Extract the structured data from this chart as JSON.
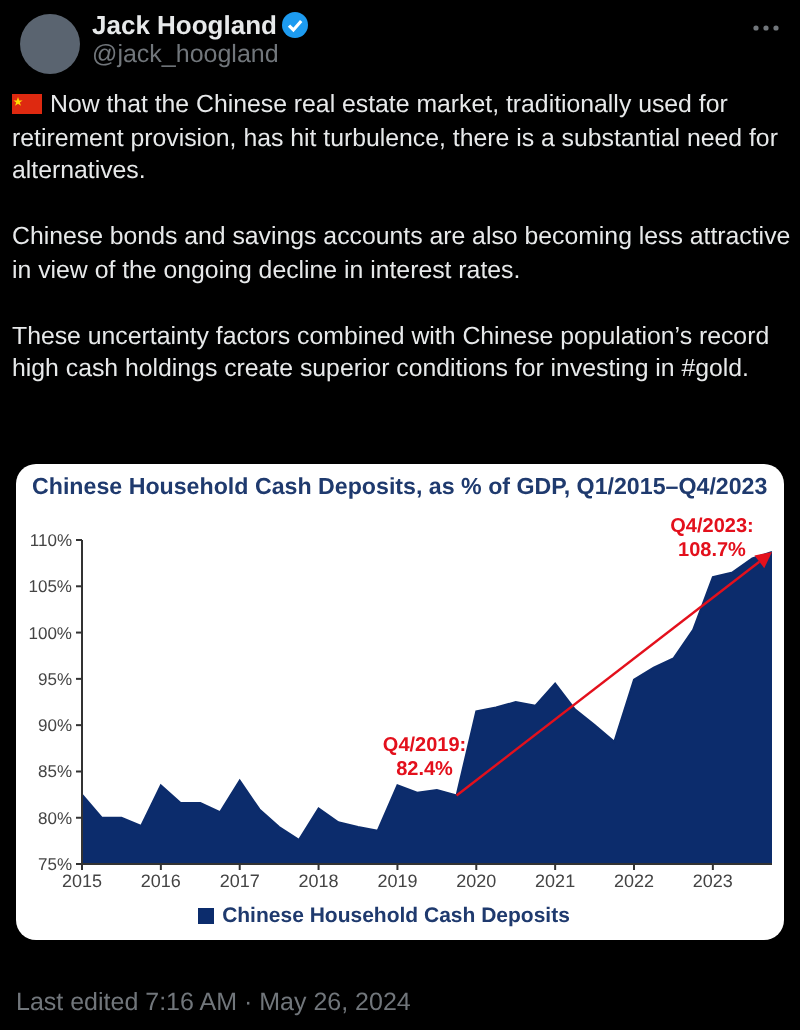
{
  "chart_data": {
    "type": "area",
    "title": "Chinese Household Cash Deposits, as % of GDP, Q1/2015–Q4/2023",
    "x": [
      2015,
      2015.25,
      2015.5,
      2015.75,
      2016,
      2016.25,
      2016.5,
      2016.75,
      2017,
      2017.25,
      2017.5,
      2017.75,
      2018,
      2018.25,
      2018.5,
      2018.75,
      2019,
      2019.25,
      2019.5,
      2019.75,
      2020,
      2020.25,
      2020.5,
      2020.75,
      2021,
      2021.25,
      2021.5,
      2021.75,
      2022,
      2022.25,
      2022.5,
      2022.75,
      2023,
      2023.25,
      2023.5,
      2023.75
    ],
    "series": [
      {
        "name": "Chinese Household Cash Deposits",
        "color": "#0c2c6c",
        "values": [
          82.5,
          80.0,
          80.0,
          79.1,
          83.5,
          81.6,
          81.6,
          80.6,
          84.0,
          80.9,
          79.0,
          77.6,
          81.0,
          79.5,
          79.0,
          78.6,
          83.5,
          82.7,
          83.0,
          82.4,
          91.5,
          91.9,
          92.5,
          92.1,
          94.5,
          91.7,
          90.0,
          88.2,
          94.9,
          96.2,
          97.2,
          100.3,
          106.0,
          106.5,
          108.0,
          108.7
        ]
      }
    ],
    "xlim": [
      2015,
      2023.75
    ],
    "xticks": [
      2015,
      2016,
      2017,
      2018,
      2019,
      2020,
      2021,
      2022,
      2023
    ],
    "ylim": [
      75,
      110
    ],
    "yticks": [
      {
        "value": 75,
        "label": "75%"
      },
      {
        "value": 80,
        "label": "80%"
      },
      {
        "value": 85,
        "label": "85%"
      },
      {
        "value": 90,
        "label": "90%"
      },
      {
        "value": 95,
        "label": "95%"
      },
      {
        "value": 100,
        "label": "100%"
      },
      {
        "value": 105,
        "label": "105%"
      },
      {
        "value": 110,
        "label": "110%"
      }
    ],
    "legend": "bottom",
    "annotations": [
      "Jack Hoogland",
      "@jack_hoogland",
      "Now that the Chinese real estate market, traditionally used for retirement provision, has hit turbulence, there is a substantial need for alternatives.",
      "Chinese bonds and savings accounts are also becoming less attractive in view of the ongoing decline in interest rates.",
      "These uncertainty factors combined with Chinese population’s record high cash holdings create superior conditions for investing in #gold.",
      "Last edited 7:16 AM · May 26, 2024",
      {
        "text": "Q4/2019: 82.4%",
        "x": 2019.75,
        "y": 82.4
      },
      {
        "text": "Q4/2023: 108.7%",
        "x": 2023.75,
        "y": 108.7
      }
    ]
  }
}
